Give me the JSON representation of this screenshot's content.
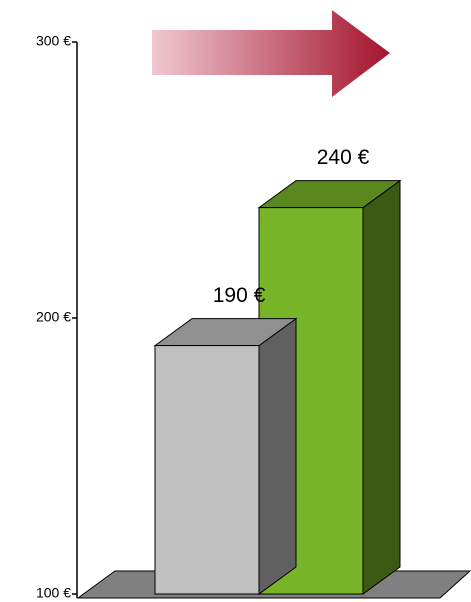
{
  "chart_data": {
    "type": "bar3d",
    "categories": [
      null,
      null
    ],
    "values": [
      190,
      240
    ],
    "value_labels": [
      "190 €",
      "240 €"
    ],
    "colors": [
      "#c0c0c0",
      "#78b428"
    ],
    "ylim": [
      100,
      300
    ],
    "yticks": [
      {
        "value": 100,
        "label": "100 €"
      },
      {
        "value": 200,
        "label": "200 €"
      },
      {
        "value": 300,
        "label": "300 €"
      }
    ]
  }
}
